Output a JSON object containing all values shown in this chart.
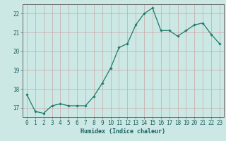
{
  "x": [
    0,
    1,
    2,
    3,
    4,
    5,
    6,
    7,
    8,
    9,
    10,
    11,
    12,
    13,
    14,
    15,
    16,
    17,
    18,
    19,
    20,
    21,
    22,
    23
  ],
  "y": [
    17.7,
    16.8,
    16.7,
    17.1,
    17.2,
    17.1,
    17.1,
    17.1,
    17.6,
    18.3,
    19.1,
    20.2,
    20.4,
    21.4,
    22.0,
    22.3,
    21.1,
    21.1,
    20.8,
    21.1,
    21.4,
    21.5,
    20.9,
    20.4
  ],
  "line_color": "#1a7a6a",
  "marker": "D",
  "marker_size": 1.8,
  "line_width": 0.9,
  "bg_color": "#cce8e4",
  "grid_color_major": "#c8a8a8",
  "grid_color_minor": "#c8a8a8",
  "axis_label_color": "#1a6060",
  "tick_color": "#1a6060",
  "xlabel": "Humidex (Indice chaleur)",
  "xlim": [
    -0.5,
    23.5
  ],
  "ylim": [
    16.5,
    22.5
  ],
  "yticks": [
    17,
    18,
    19,
    20,
    21,
    22
  ],
  "xticks": [
    0,
    1,
    2,
    3,
    4,
    5,
    6,
    7,
    8,
    9,
    10,
    11,
    12,
    13,
    14,
    15,
    16,
    17,
    18,
    19,
    20,
    21,
    22,
    23
  ],
  "xlabel_fontsize": 6.0,
  "tick_fontsize": 5.5,
  "spine_color": "#666666"
}
